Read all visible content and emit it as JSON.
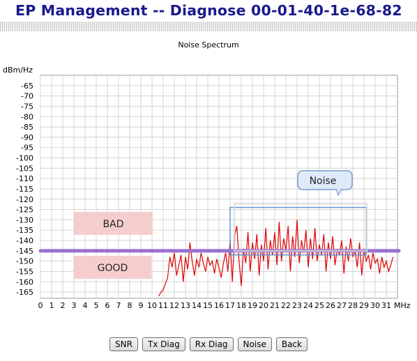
{
  "page": {
    "title": "EP Management -- Diagnose 00-01-40-1e-68-82"
  },
  "chart_data": {
    "type": "line",
    "title": "Noise Spectrum",
    "ylabel": "dBm/Hz",
    "xlabel": "MHz",
    "ylim": [
      -168,
      -60
    ],
    "xlim": [
      0,
      32
    ],
    "y_ticks": [
      -65,
      -70,
      -75,
      -80,
      -85,
      -90,
      -95,
      -100,
      -105,
      -110,
      -115,
      -120,
      -125,
      -130,
      -135,
      -140,
      -145,
      -150,
      -155,
      -160,
      -165
    ],
    "x_ticks": [
      0,
      1,
      2,
      3,
      4,
      5,
      6,
      7,
      8,
      9,
      10,
      11,
      12,
      13,
      14,
      15,
      16,
      17,
      18,
      19,
      20,
      21,
      22,
      23,
      24,
      25,
      26,
      27,
      28,
      29,
      30,
      31
    ],
    "grid": true,
    "threshold": {
      "value": -145,
      "color": "#9b6fd0"
    },
    "zone_labels": {
      "bad": "BAD",
      "good": "GOOD"
    },
    "callout": {
      "text": "Noise",
      "x_range": [
        17,
        29.2
      ],
      "y_top": -124
    },
    "series": [
      {
        "color": "#dd0000",
        "x": [
          10.6,
          10.8,
          11.0,
          11.2,
          11.4,
          11.6,
          11.8,
          12.0,
          12.2,
          12.4,
          12.6,
          12.8,
          13.0,
          13.2,
          13.4,
          13.6,
          13.8,
          14.0,
          14.2,
          14.4,
          14.6,
          14.8,
          15.0,
          15.2,
          15.4,
          15.6,
          15.8,
          16.0,
          16.2,
          16.4,
          16.6,
          16.8,
          17.0,
          17.2,
          17.4,
          17.6,
          17.8,
          18.0,
          18.2,
          18.4,
          18.6,
          18.8,
          19.0,
          19.2,
          19.4,
          19.6,
          19.8,
          20.0,
          20.2,
          20.4,
          20.6,
          20.8,
          21.0,
          21.2,
          21.4,
          21.6,
          21.8,
          22.0,
          22.2,
          22.4,
          22.6,
          22.8,
          23.0,
          23.2,
          23.4,
          23.6,
          23.8,
          24.0,
          24.2,
          24.4,
          24.6,
          24.8,
          25.0,
          25.2,
          25.4,
          25.6,
          25.8,
          26.0,
          26.2,
          26.4,
          26.6,
          26.8,
          27.0,
          27.2,
          27.4,
          27.6,
          27.8,
          28.0,
          28.2,
          28.4,
          28.6,
          28.8,
          29.0,
          29.2,
          29.4,
          29.6,
          29.8,
          30.0,
          30.2,
          30.4,
          30.6,
          30.8,
          31.0,
          31.2,
          31.4,
          31.6
        ],
        "y": [
          -167,
          -165,
          -164,
          -161,
          -158,
          -148,
          -153,
          -146,
          -157,
          -152,
          -147,
          -160,
          -148,
          -154,
          -141,
          -150,
          -157,
          -149,
          -153,
          -146,
          -151,
          -155,
          -148,
          -152,
          -150,
          -156,
          -149,
          -153,
          -158,
          -151,
          -146,
          -155,
          -140,
          -160,
          -138,
          -133,
          -150,
          -162,
          -144,
          -151,
          -136,
          -155,
          -141,
          -149,
          -137,
          -157,
          -142,
          -150,
          -134,
          -154,
          -140,
          -147,
          -136,
          -152,
          -131,
          -150,
          -139,
          -145,
          -133,
          -155,
          -138,
          -148,
          -130,
          -151,
          -140,
          -146,
          -135,
          -153,
          -139,
          -149,
          -134,
          -150,
          -142,
          -147,
          -137,
          -155,
          -141,
          -149,
          -138,
          -152,
          -144,
          -147,
          -140,
          -156,
          -143,
          -150,
          -139,
          -148,
          -145,
          -153,
          -141,
          -157,
          -144,
          -150,
          -147,
          -154,
          -146,
          -151,
          -149,
          -156,
          -148,
          -153,
          -150,
          -155,
          -152,
          -148
        ]
      }
    ]
  },
  "buttons": {
    "snr": "SNR",
    "tx_diag": "Tx Diag",
    "rx_diag": "Rx Diag",
    "noise": "Noise",
    "back": "Back"
  }
}
